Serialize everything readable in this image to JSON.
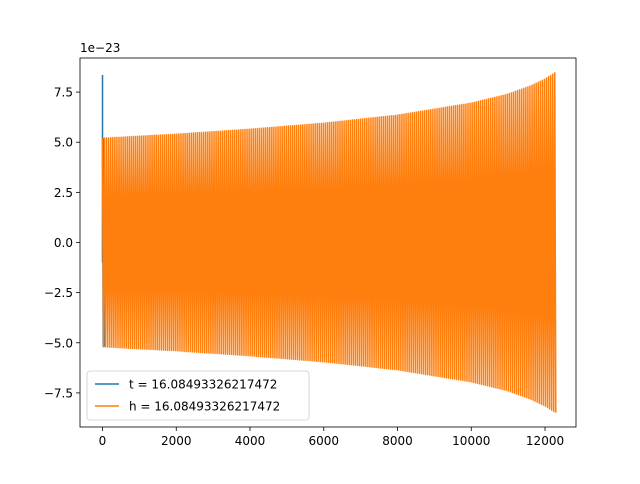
{
  "chart_data": {
    "type": "line",
    "title": "",
    "xlabel": "",
    "ylabel": "",
    "y_scale_label": "1e−23",
    "xlim": [
      -610,
      12840
    ],
    "ylim": [
      -9.2,
      9.2
    ],
    "x_ticks": [
      0,
      2000,
      4000,
      6000,
      8000,
      10000,
      12000
    ],
    "x_tick_labels": [
      "0",
      "2000",
      "4000",
      "6000",
      "8000",
      "10000",
      "12000"
    ],
    "y_ticks": [
      7.5,
      5.0,
      2.5,
      0.0,
      -2.5,
      -5.0,
      -7.5
    ],
    "y_tick_labels": [
      "7.5",
      "5.0",
      "2.5",
      "0.0",
      "−2.5",
      "−5.0",
      "−7.5"
    ],
    "grid": false,
    "legend_placement": "lower-left",
    "series": [
      {
        "name": "t = 16.08493326217472",
        "color": "#1f77b4",
        "description_points": {
          "x": [
            0,
            0,
            0,
            20,
            40,
            60,
            80
          ],
          "y": [
            8.35,
            -1.0,
            5.2,
            -5.2,
            5.2,
            -5.2,
            0
          ]
        }
      },
      {
        "name": "h = 16.08493326217472",
        "color": "#ff7f0e",
        "envelope": {
          "x": [
            0,
            2000,
            4000,
            6000,
            8000,
            10000,
            11000,
            11600,
            12000,
            12300
          ],
          "upper": [
            5.2,
            5.4,
            5.65,
            5.95,
            6.35,
            6.95,
            7.4,
            7.8,
            8.15,
            8.5
          ],
          "lower": [
            -5.2,
            -5.4,
            -5.65,
            -5.95,
            -6.35,
            -6.95,
            -7.4,
            -7.8,
            -8.15,
            -8.5
          ]
        }
      }
    ]
  }
}
